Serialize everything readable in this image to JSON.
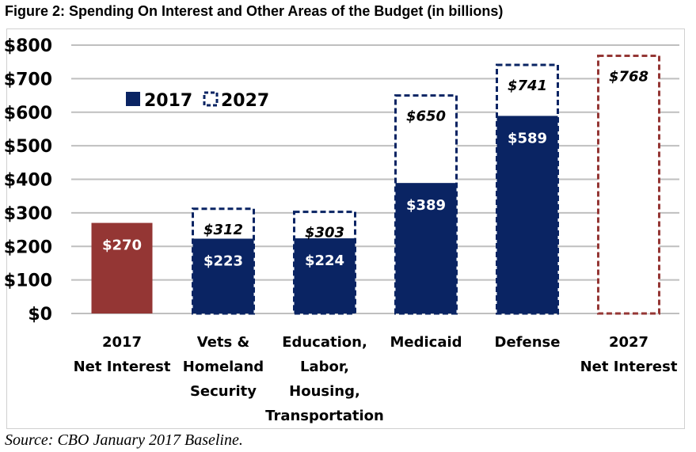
{
  "title": "Figure 2: Spending On Interest and Other Areas of the Budget (in billions)",
  "source": "Source: CBO January 2017 Baseline.",
  "colors": {
    "navy": "#0a2463",
    "maroon": "#943634",
    "grid": "#bfbfbf"
  },
  "chart_data": {
    "type": "bar",
    "title": "Figure 2: Spending On Interest and Other Areas of the Budget (in billions)",
    "xlabel": "",
    "ylabel": "",
    "ylim": [
      0,
      800
    ],
    "yticks": [
      0,
      100,
      200,
      300,
      400,
      500,
      600,
      700,
      800
    ],
    "ytick_labels": [
      "$0",
      "$100",
      "$200",
      "$300",
      "$400",
      "$500",
      "$600",
      "$700",
      "$800"
    ],
    "grid": true,
    "legend_position": "top-left",
    "categories": [
      [
        "2017",
        "Net Interest"
      ],
      [
        "Vets &",
        "Homeland",
        "Security"
      ],
      [
        "Education,",
        "Labor,",
        "Housing,",
        "Transportation"
      ],
      [
        "Medicaid"
      ],
      [
        "Defense"
      ],
      [
        "2027",
        "Net Interest"
      ]
    ],
    "series": [
      {
        "name": "2017",
        "style": "solid",
        "values": [
          270,
          223,
          224,
          389,
          589,
          null
        ],
        "labels": [
          "$270",
          "$223",
          "$224",
          "$389",
          "$589",
          null
        ]
      },
      {
        "name": "2027",
        "style": "dashed",
        "values": [
          null,
          312,
          303,
          650,
          741,
          768
        ],
        "labels": [
          null,
          "$312",
          "$303",
          "$650",
          "$741",
          "$768"
        ]
      }
    ],
    "bar_colors": [
      "maroon",
      "navy",
      "navy",
      "navy",
      "navy",
      "maroon"
    ]
  }
}
